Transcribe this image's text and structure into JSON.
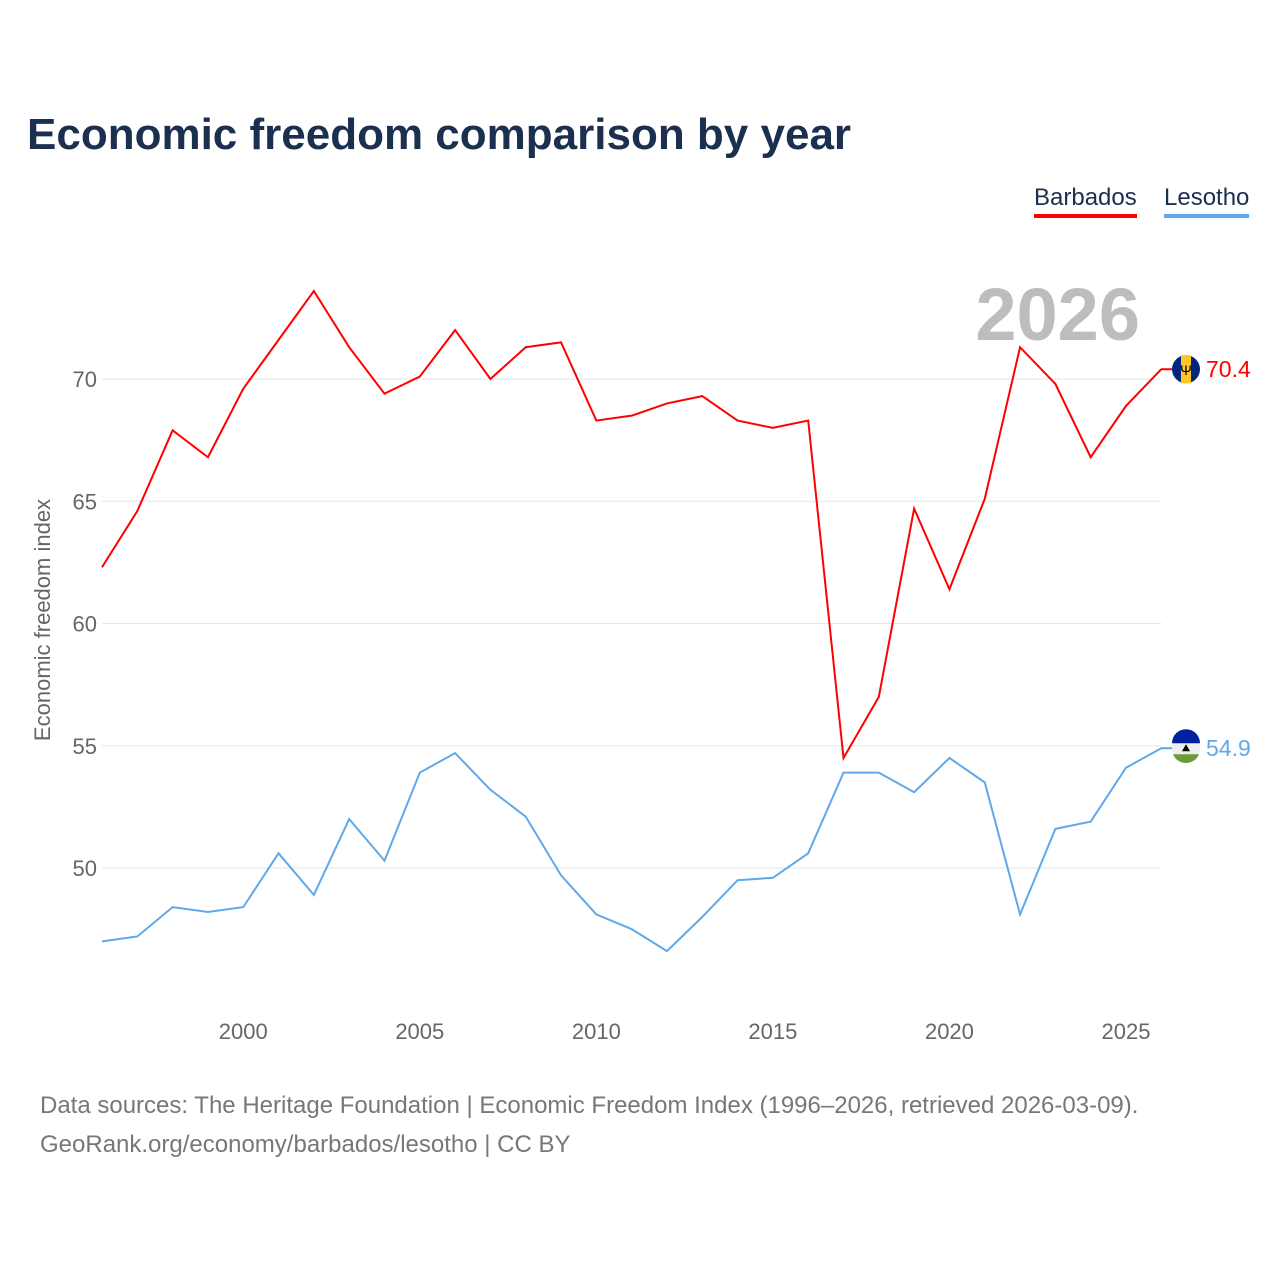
{
  "chart_data": {
    "type": "line",
    "title": "Economic freedom comparison by year",
    "xlabel": "",
    "ylabel": "Economic freedom index",
    "year_label": "2026",
    "xlim": [
      1996,
      2026
    ],
    "ylim": [
      45,
      75
    ],
    "x_ticks": [
      2000,
      2005,
      2010,
      2015,
      2020,
      2025
    ],
    "y_ticks": [
      50,
      55,
      60,
      65,
      70
    ],
    "grid": true,
    "legend_position": "top-right",
    "x": [
      1996,
      1997,
      1998,
      1999,
      2000,
      2001,
      2002,
      2003,
      2004,
      2005,
      2006,
      2007,
      2008,
      2009,
      2010,
      2011,
      2012,
      2013,
      2014,
      2015,
      2016,
      2017,
      2018,
      2019,
      2020,
      2021,
      2022,
      2023,
      2024,
      2025,
      2026
    ],
    "series": [
      {
        "name": "Barbados",
        "color": "#ff0000",
        "end_label": "70.4",
        "values": [
          62.3,
          64.6,
          67.9,
          66.8,
          69.6,
          71.6,
          73.6,
          71.3,
          69.4,
          70.1,
          72.0,
          70.0,
          71.3,
          71.5,
          68.3,
          68.5,
          69.0,
          69.3,
          68.3,
          68.0,
          68.3,
          54.5,
          57.0,
          64.7,
          61.4,
          65.1,
          71.3,
          69.8,
          66.8,
          68.9,
          70.4
        ]
      },
      {
        "name": "Lesotho",
        "color": "#5fa8ea",
        "end_label": "54.9",
        "values": [
          47.0,
          47.2,
          48.4,
          48.2,
          48.4,
          50.6,
          48.9,
          52.0,
          50.3,
          53.9,
          54.7,
          53.2,
          52.1,
          49.7,
          48.1,
          47.5,
          46.6,
          48.0,
          49.5,
          49.6,
          50.6,
          53.9,
          53.9,
          53.1,
          54.5,
          53.5,
          48.1,
          51.6,
          51.9,
          54.1,
          54.9
        ]
      }
    ]
  },
  "footer": {
    "line1": "Data sources: The Heritage Foundation | Economic Freedom Index (1996–2026, retrieved 2026-03-09).",
    "line2": "GeoRank.org/economy/barbados/lesotho | CC BY"
  }
}
